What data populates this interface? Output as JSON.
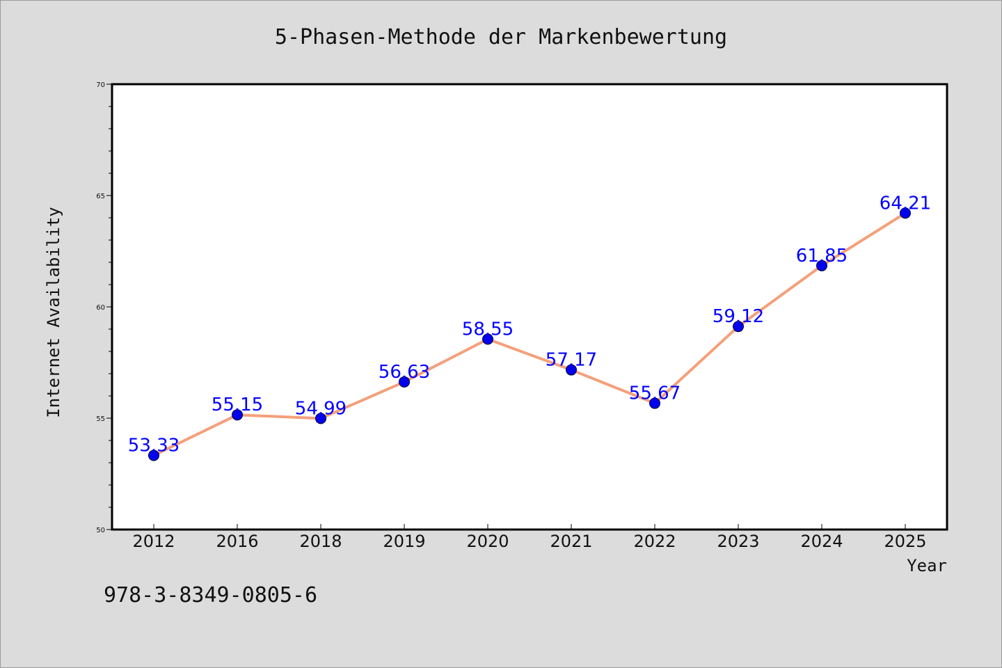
{
  "chart_data": {
    "type": "line",
    "title": "5-Phasen-Methode der Markenbewertung",
    "xlabel": "Year",
    "ylabel": "Internet Availability",
    "categories": [
      "2012",
      "2016",
      "2018",
      "2019",
      "2020",
      "2021",
      "2022",
      "2023",
      "2024",
      "2025"
    ],
    "series": [
      {
        "values": [
          53.33,
          55.15,
          54.99,
          56.63,
          58.55,
          57.17,
          55.67,
          59.12,
          61.85,
          64.21
        ],
        "data_labels": [
          "53.33",
          "55.15",
          "54.99",
          "56.63",
          "58.55",
          "57.17",
          "55.67",
          "59.12",
          "61.85",
          "64.21"
        ],
        "line_color": "#f4a07a",
        "marker_color": "#0000ee"
      }
    ],
    "ylim": [
      50,
      70
    ],
    "yticks": [
      "50",
      "55",
      "60",
      "65",
      "70"
    ],
    "grid": false,
    "legend": "none"
  },
  "annotation": "978-3-8349-0805-6",
  "colors": {
    "background": "#dcdcdc",
    "plot_background": "#ffffff",
    "data_label": "#0000ff"
  }
}
